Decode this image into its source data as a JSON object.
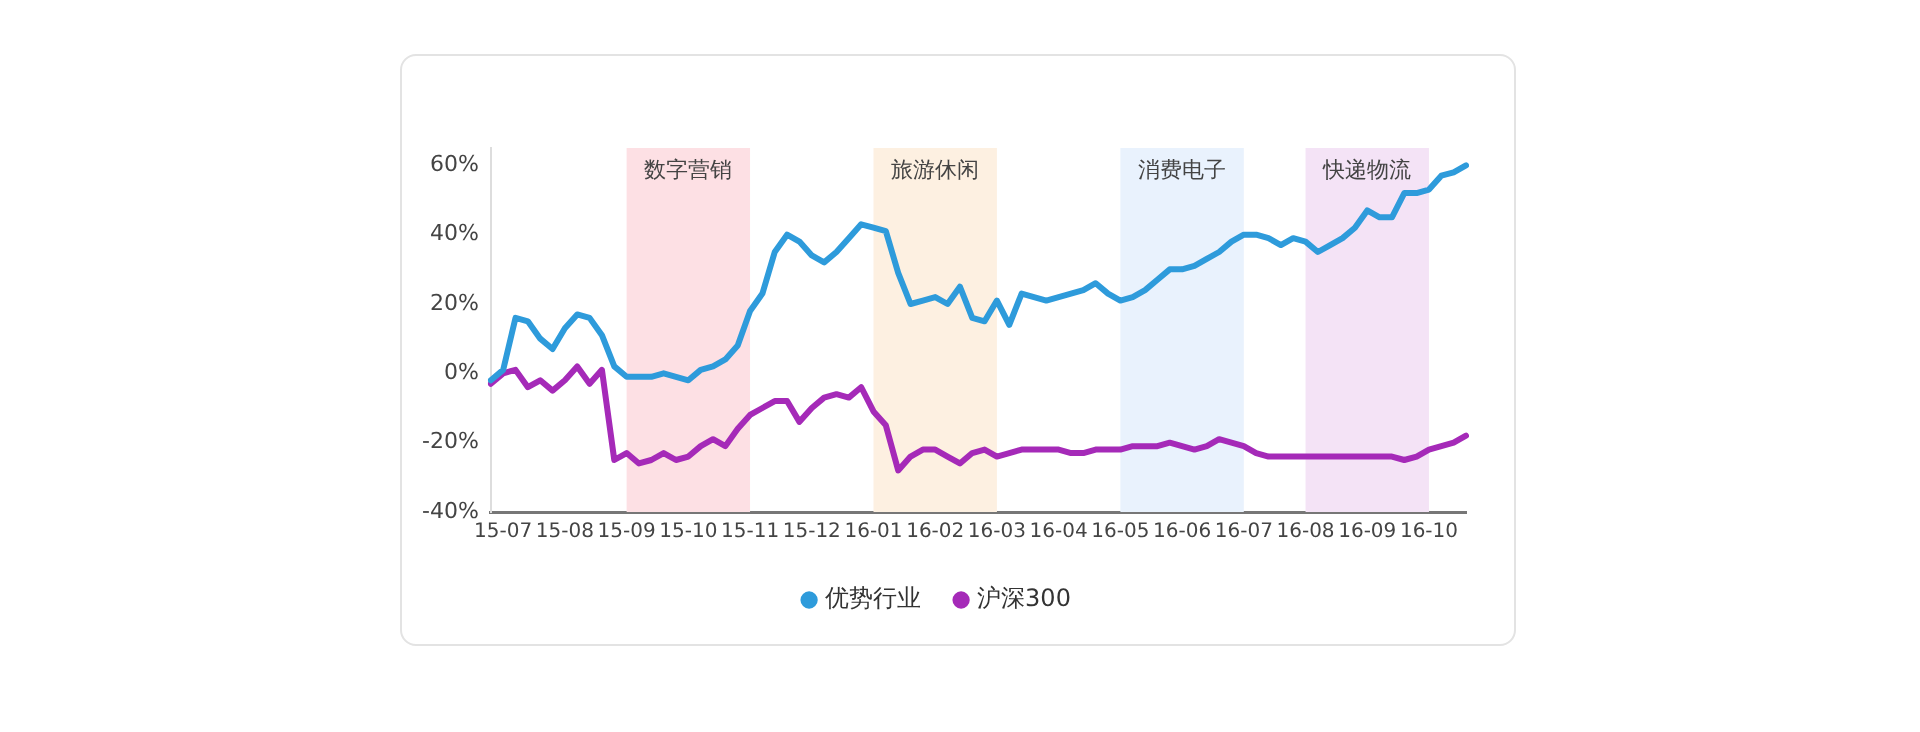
{
  "chart_data": {
    "type": "line",
    "categories": [
      null,
      "15-07",
      null,
      null,
      null,
      null,
      "15-08",
      null,
      null,
      null,
      null,
      "15-09",
      null,
      null,
      null,
      null,
      "15-10",
      null,
      null,
      null,
      null,
      "15-11",
      null,
      null,
      null,
      null,
      "15-12",
      null,
      null,
      null,
      null,
      "16-01",
      null,
      null,
      null,
      null,
      "16-02",
      null,
      null,
      null,
      null,
      "16-03",
      null,
      null,
      null,
      null,
      "16-04",
      null,
      null,
      null,
      null,
      "16-05",
      null,
      null,
      null,
      null,
      "16-06",
      null,
      null,
      null,
      null,
      "16-07",
      null,
      null,
      null,
      null,
      "16-08",
      null,
      null,
      null,
      null,
      "16-09",
      null,
      null,
      null,
      null,
      "16-10",
      null,
      null,
      null
    ],
    "ylim": [
      -40,
      65
    ],
    "yticks": [
      {
        "value": -40,
        "label": "-40%"
      },
      {
        "value": -20,
        "label": "-20%"
      },
      {
        "value": 0,
        "label": "0%"
      },
      {
        "value": 20,
        "label": "20%"
      },
      {
        "value": 40,
        "label": "40%"
      },
      {
        "value": 60,
        "label": "60%"
      }
    ],
    "series": [
      {
        "name": "优势行业",
        "color": "#2e9bdb",
        "values": [
          -2,
          1,
          16,
          15,
          10,
          7,
          13,
          17,
          16,
          11,
          2,
          -1,
          -1,
          -1,
          0,
          -1,
          -2,
          1,
          2,
          4,
          8,
          18,
          23,
          35,
          40,
          38,
          34,
          32,
          35,
          39,
          43,
          42,
          41,
          29,
          20,
          21,
          22,
          20,
          25,
          16,
          15,
          21,
          14,
          23,
          22,
          21,
          22,
          23,
          24,
          26,
          23,
          21,
          22,
          24,
          27,
          30,
          30,
          31,
          33,
          35,
          38,
          40,
          40,
          39,
          37,
          39,
          38,
          35,
          37,
          39,
          42,
          47,
          45,
          45,
          52,
          52,
          53,
          57,
          58,
          60
        ]
      },
      {
        "name": "沪深300",
        "color": "#a52ab8",
        "values": [
          -3,
          0,
          1,
          -4,
          -2,
          -5,
          -2,
          2,
          -3,
          1,
          -25,
          -23,
          -26,
          -25,
          -23,
          -25,
          -24,
          -21,
          -19,
          -21,
          -16,
          -12,
          -10,
          -8,
          -8,
          -14,
          -10,
          -7,
          -6,
          -7,
          -4,
          -11,
          -15,
          -28,
          -24,
          -22,
          -22,
          -24,
          -26,
          -23,
          -22,
          -24,
          -23,
          -22,
          -22,
          -22,
          -22,
          -23,
          -23,
          -22,
          -22,
          -22,
          -21,
          -21,
          -21,
          -20,
          -21,
          -22,
          -21,
          -19,
          -20,
          -21,
          -23,
          -24,
          -24,
          -24,
          -24,
          -24,
          -24,
          -24,
          -24,
          -24,
          -24,
          -24,
          -25,
          -24,
          -22,
          -21,
          -20,
          -18
        ]
      }
    ],
    "bands": [
      {
        "axis": "x",
        "from": "15-09",
        "to": "15-11",
        "label": "数字营销",
        "color": "#fde0e4"
      },
      {
        "axis": "x",
        "from": "16-01",
        "to": "16-03",
        "label": "旅游休闲",
        "color": "#fdf0e1"
      },
      {
        "axis": "x",
        "from": "16-05",
        "to": "16-07",
        "label": "消费电子",
        "color": "#e9f2fd"
      },
      {
        "axis": "x",
        "from": "16-08",
        "to": "16-10",
        "label": "快递物流",
        "color": "#f4e3f6"
      }
    ],
    "legend": "bottom",
    "grid": false,
    "marker": "none",
    "line_style": "solid"
  }
}
